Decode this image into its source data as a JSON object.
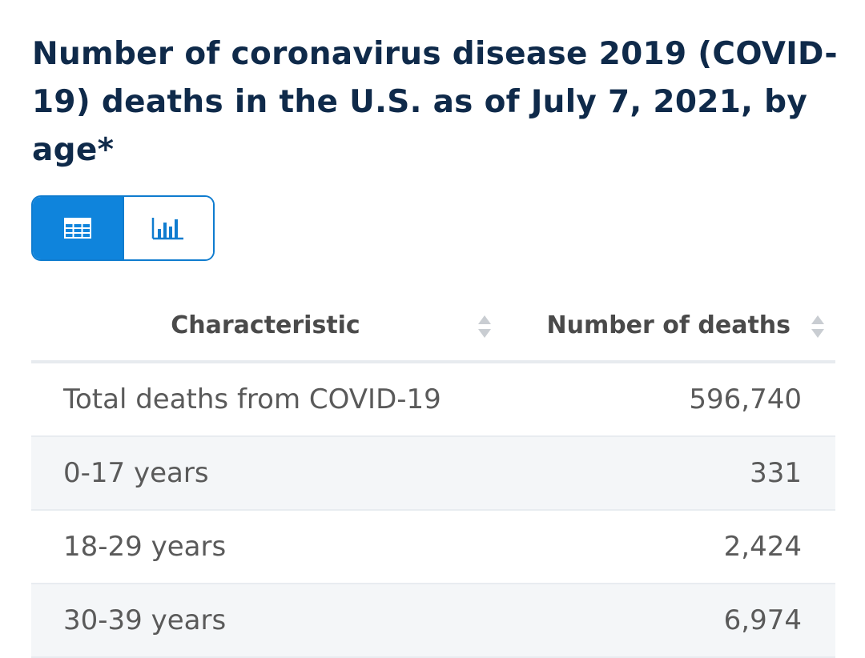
{
  "title": "Number of coronavirus disease 2019 (COVID-19) deaths in the U.S. as of July 7, 2021, by age*",
  "view_toggle": {
    "options": [
      {
        "icon": "table-icon",
        "active": true
      },
      {
        "icon": "bar-chart-icon",
        "active": false
      }
    ],
    "active_color": "#0f84dc"
  },
  "table": {
    "columns": [
      "Characteristic",
      "Number of deaths"
    ],
    "rows": [
      {
        "characteristic": "Total deaths from COVID-19",
        "deaths": "596,740"
      },
      {
        "characteristic": "0-17 years",
        "deaths": "331"
      },
      {
        "characteristic": "18-29 years",
        "deaths": "2,424"
      },
      {
        "characteristic": "30-39 years",
        "deaths": "6,974"
      }
    ]
  }
}
